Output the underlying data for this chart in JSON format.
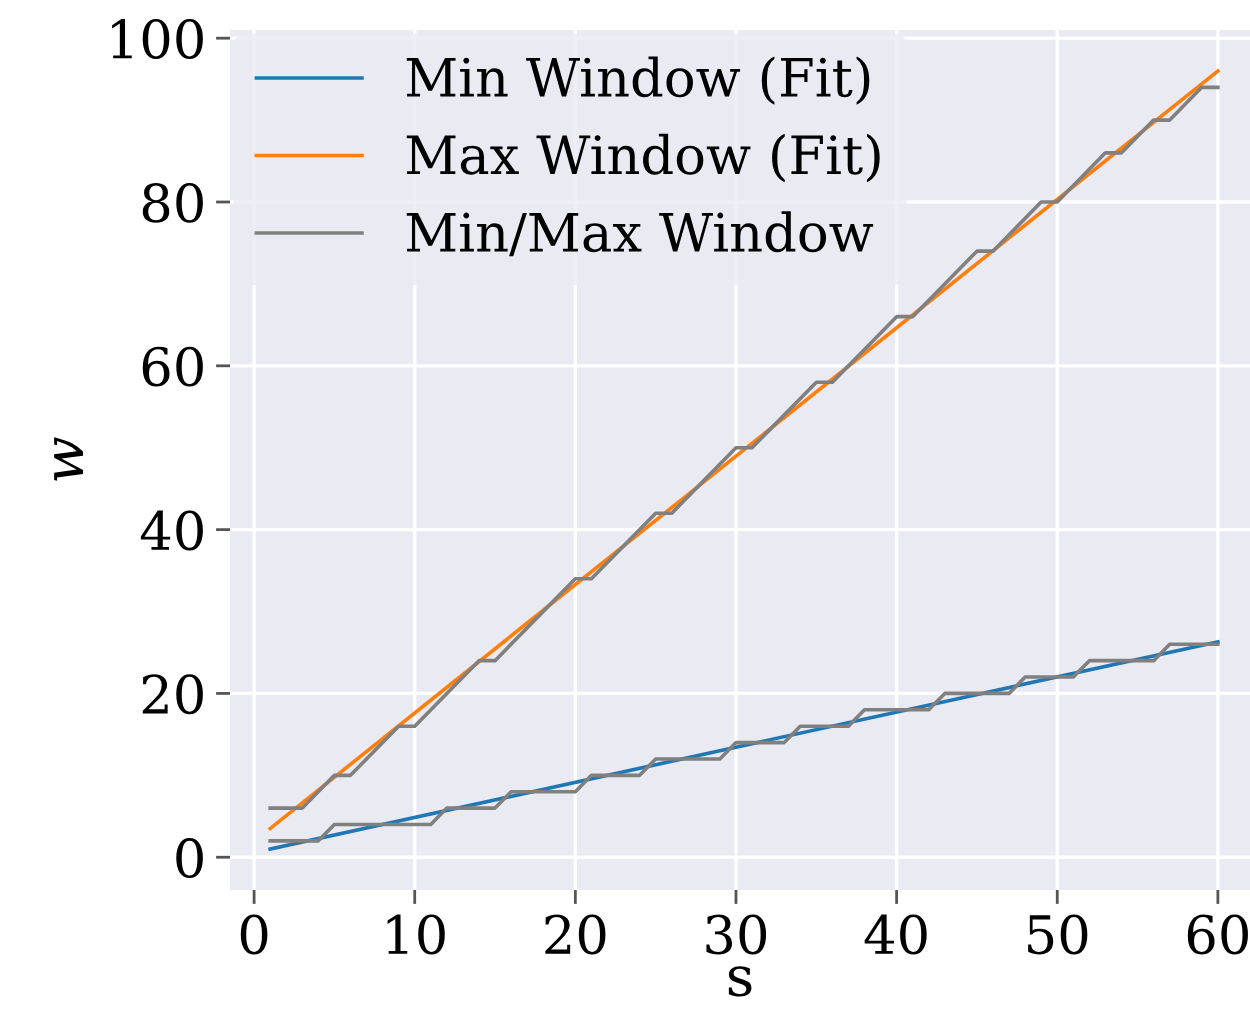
{
  "chart_data": {
    "type": "line",
    "xlabel": "s",
    "ylabel": "w",
    "xlim": [
      -1.5,
      62
    ],
    "ylim": [
      -4,
      101
    ],
    "xticks": [
      0,
      10,
      20,
      30,
      40,
      50,
      60
    ],
    "yticks": [
      0,
      20,
      40,
      60,
      80,
      100
    ],
    "grid": true,
    "legend": "top left",
    "series": [
      {
        "name": "Min Window (Fit)",
        "color": "#1f77b4",
        "x": [
          1,
          60
        ],
        "values": [
          1.0,
          26.3
        ]
      },
      {
        "name": "Max Window (Fit)",
        "color": "#ff7f0e",
        "x": [
          1,
          60
        ],
        "values": [
          3.5,
          96
        ]
      },
      {
        "name": "Min/Max Window",
        "color": "#808080",
        "x": [
          1,
          4,
          5,
          11,
          12,
          15,
          16,
          20,
          21,
          24,
          25,
          29,
          30,
          33,
          34,
          37,
          38,
          42,
          43,
          47,
          48,
          51,
          52,
          56,
          57,
          60
        ],
        "values": [
          2,
          2,
          4,
          4,
          6,
          6,
          8,
          8,
          10,
          10,
          12,
          12,
          14,
          14,
          16,
          16,
          18,
          18,
          20,
          20,
          22,
          22,
          24,
          24,
          26,
          26
        ]
      },
      {
        "color": "#808080",
        "x": [
          1,
          3,
          5,
          6,
          9,
          10,
          14,
          15,
          20,
          21,
          25,
          26,
          30,
          31,
          35,
          36,
          40,
          41,
          45,
          46,
          49,
          50,
          53,
          54,
          56,
          57,
          59,
          60
        ],
        "values": [
          6,
          6,
          10,
          10,
          16,
          16,
          24,
          24,
          34,
          34,
          42,
          42,
          50,
          50,
          58,
          58,
          66,
          66,
          74,
          74,
          80,
          80,
          86,
          86,
          90,
          90,
          94,
          94
        ]
      }
    ]
  }
}
